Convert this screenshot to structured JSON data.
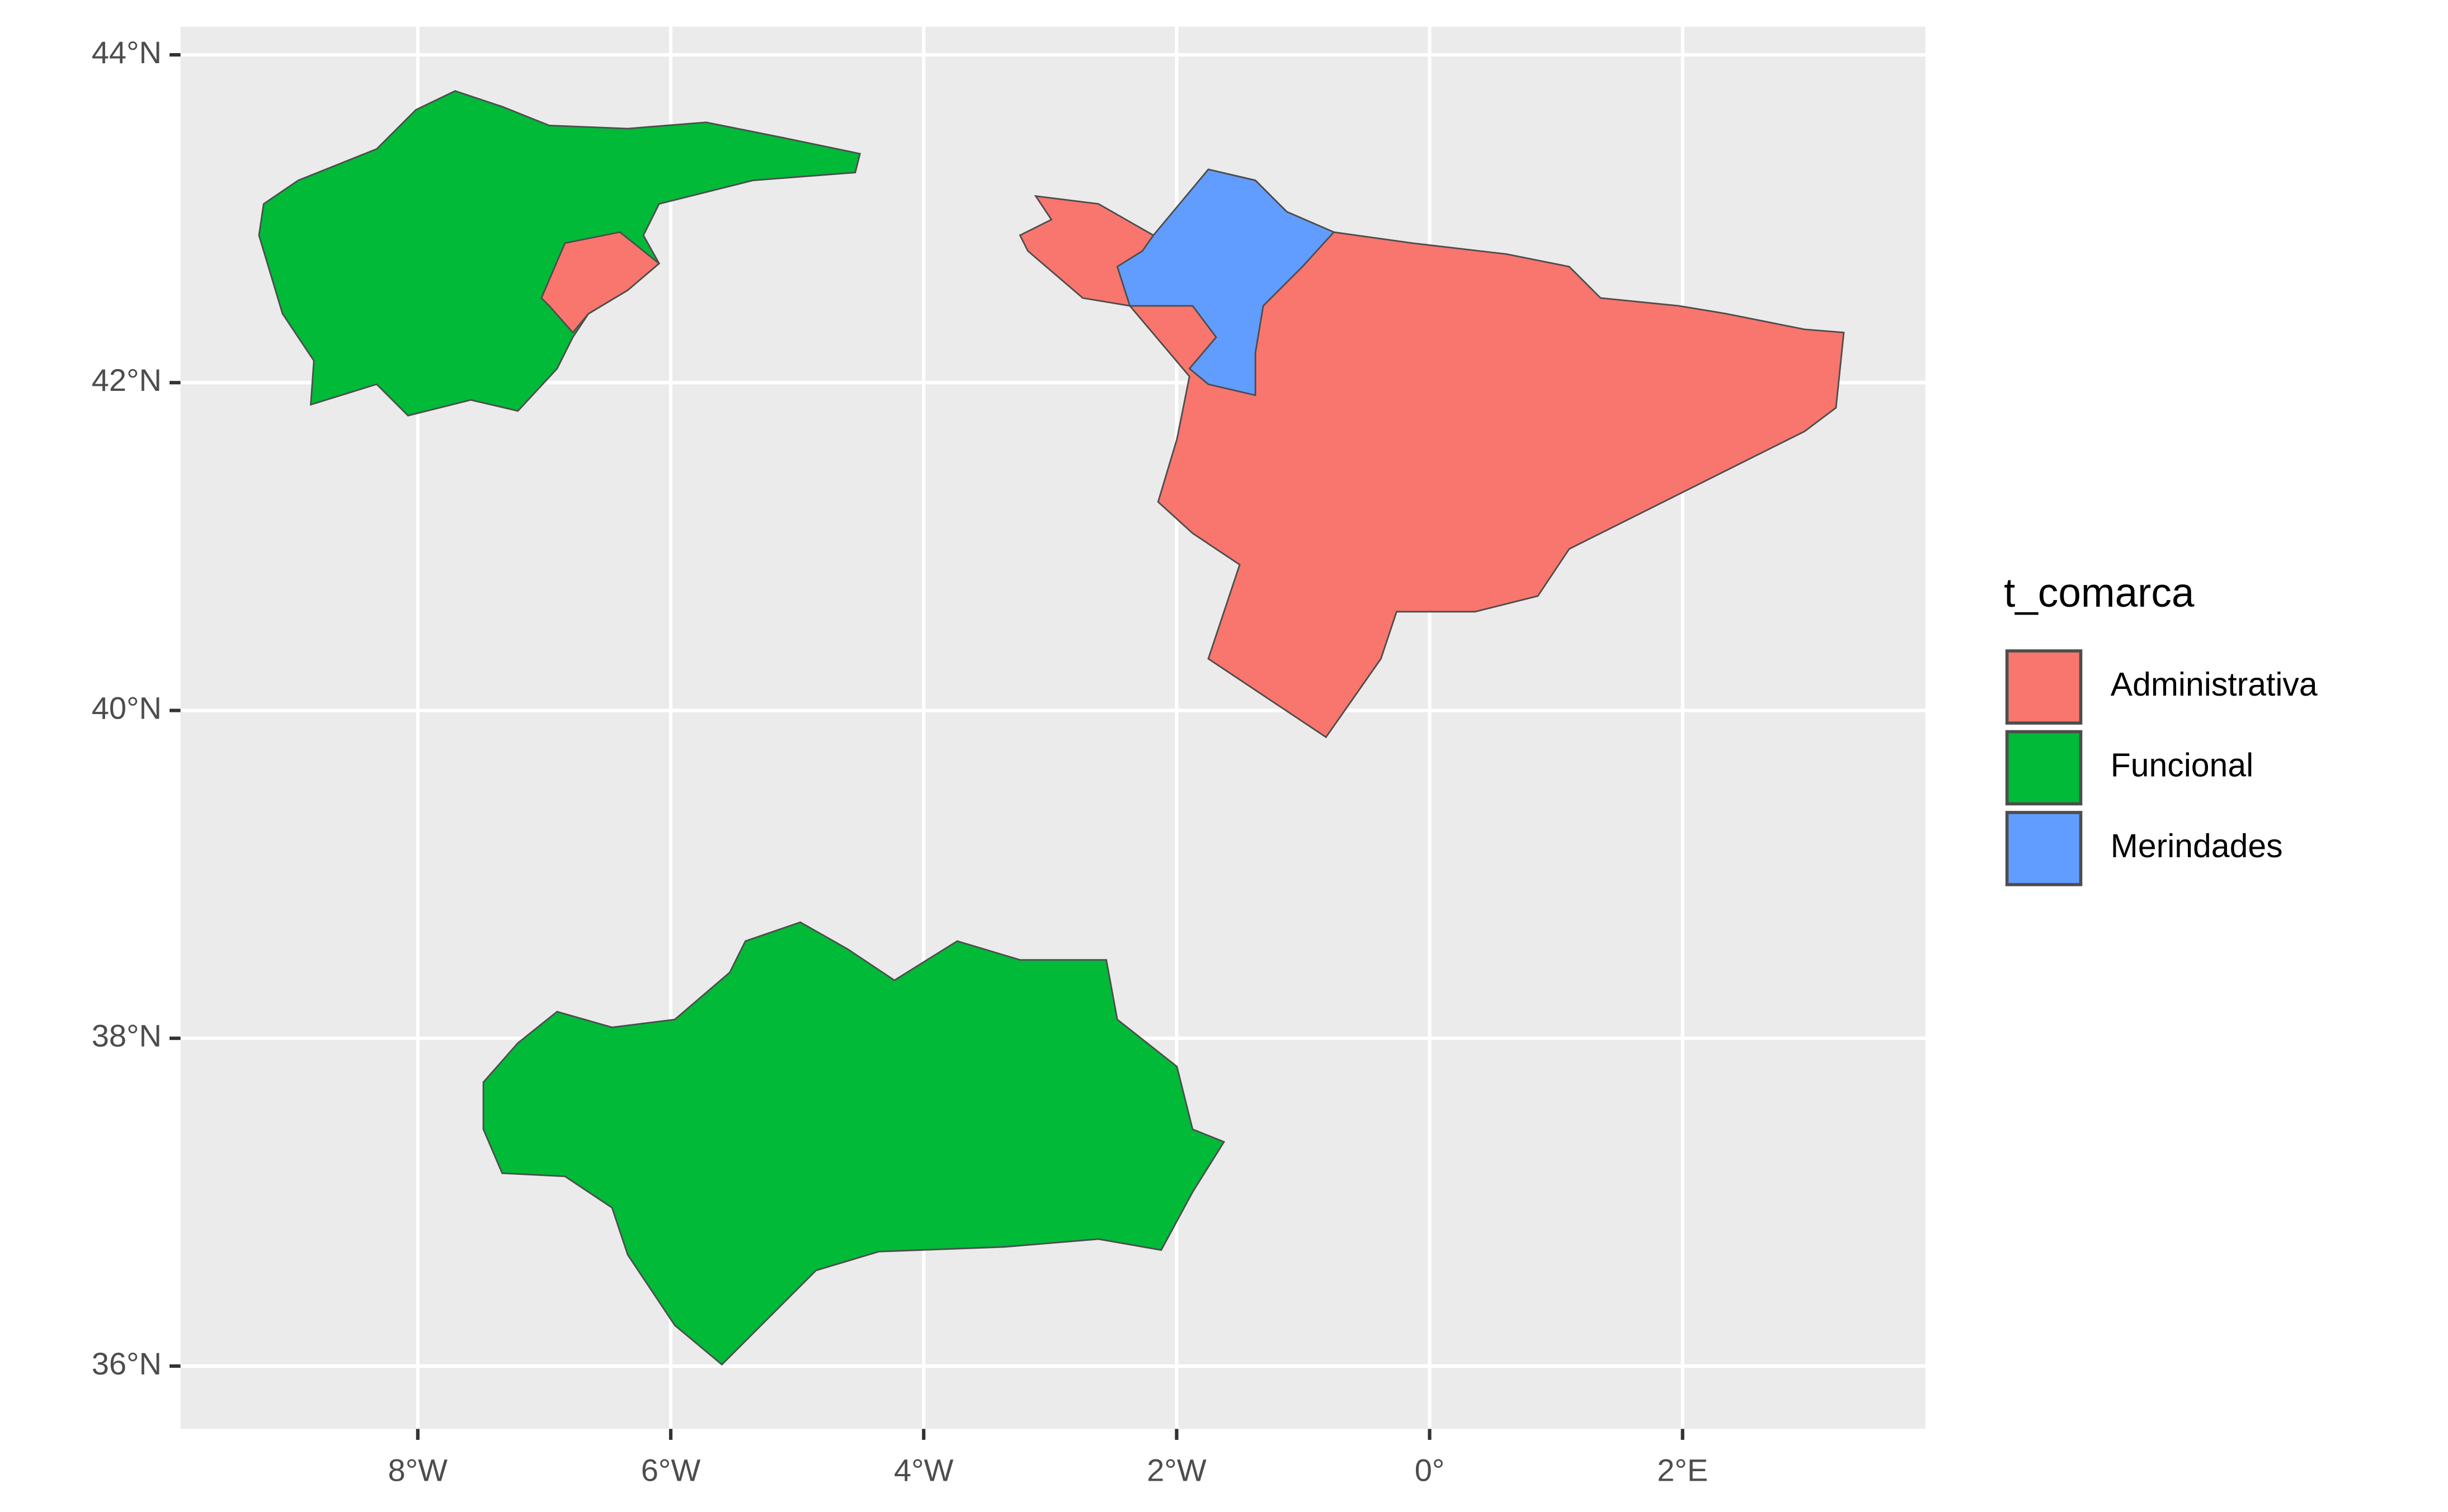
{
  "chart_data": {
    "type": "map",
    "xlim": [
      -9.876,
      3.92
    ],
    "ylim": [
      35.617,
      44.172
    ],
    "xticks": [
      {
        "value": -8,
        "label": "8°W"
      },
      {
        "value": -6,
        "label": "6°W"
      },
      {
        "value": -4,
        "label": "4°W"
      },
      {
        "value": -2,
        "label": "2°W"
      },
      {
        "value": 0,
        "label": "0°"
      },
      {
        "value": 2,
        "label": "2°E"
      }
    ],
    "yticks": [
      {
        "value": 36,
        "label": "36°N"
      },
      {
        "value": 38,
        "label": "38°N"
      },
      {
        "value": 40,
        "label": "40°N"
      },
      {
        "value": 42,
        "label": "42°N"
      },
      {
        "value": 44,
        "label": "44°N"
      }
    ],
    "grid": true,
    "legend": {
      "title": "t_comarca",
      "position": "right",
      "items": [
        {
          "name": "Administrativa",
          "color": "#F8766D"
        },
        {
          "name": "Funcional",
          "color": "#00BA38"
        },
        {
          "name": "Merindades",
          "color": "#619CFF"
        }
      ]
    }
  }
}
